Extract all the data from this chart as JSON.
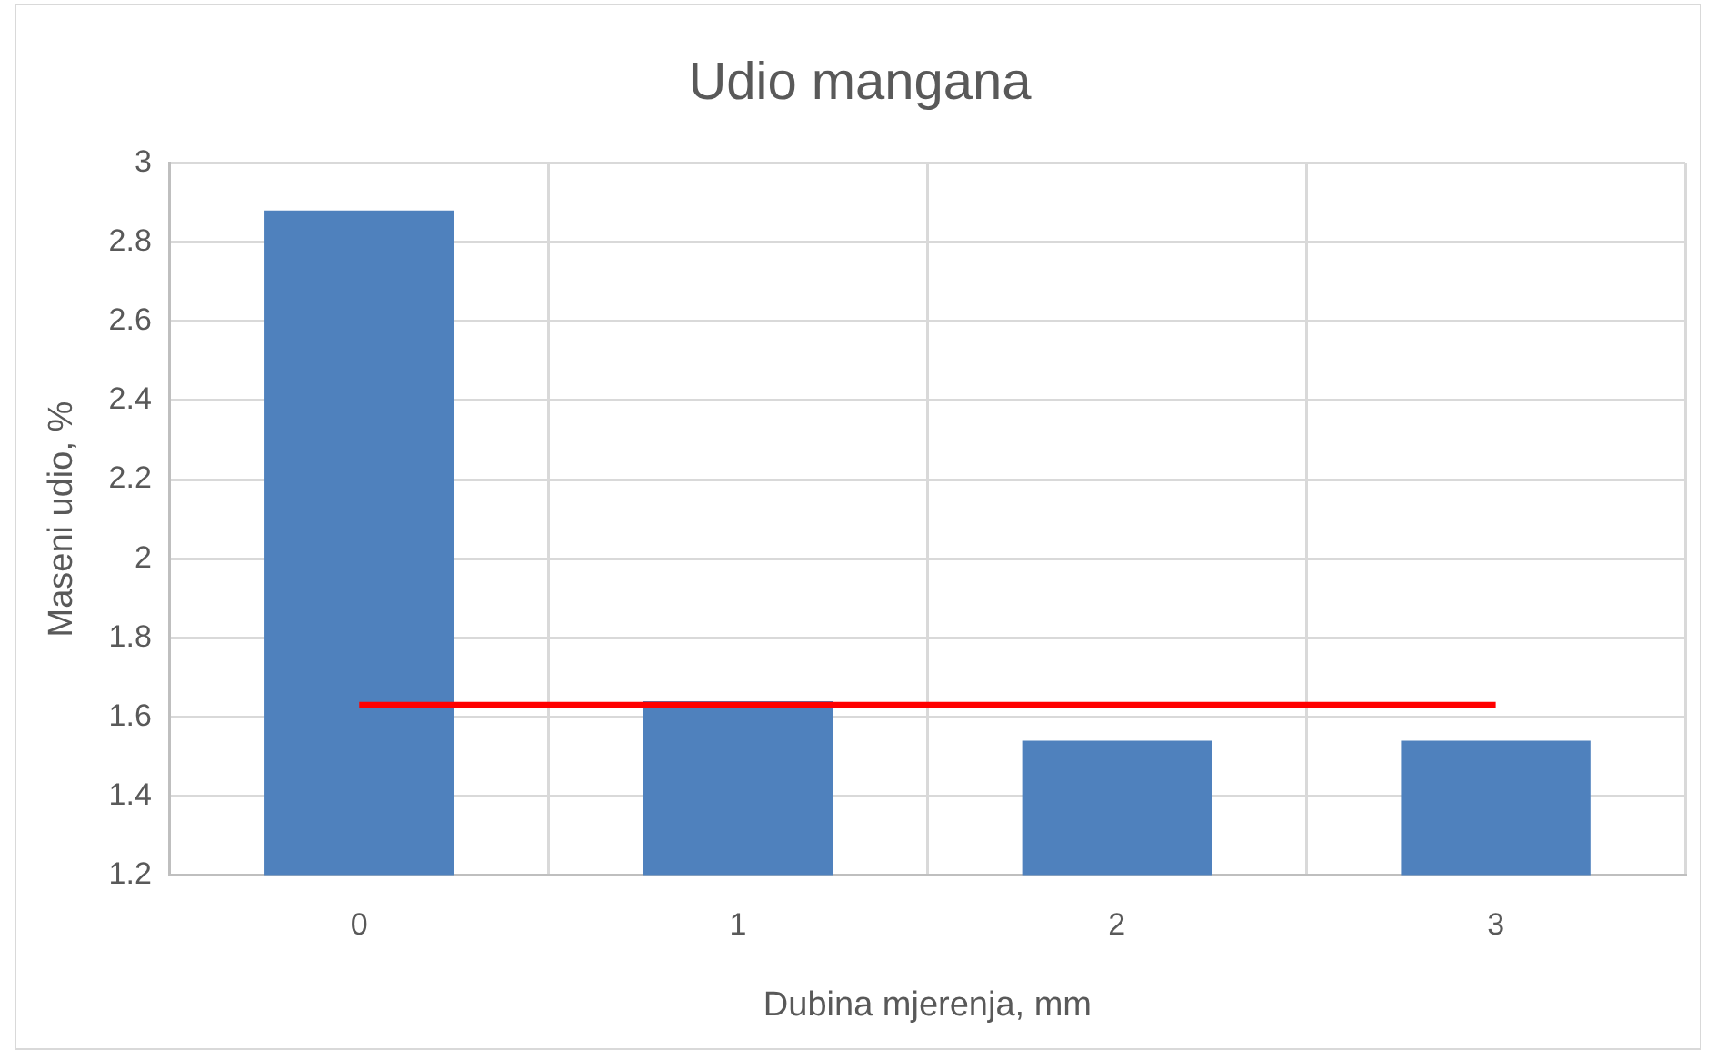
{
  "chart_data": {
    "type": "bar",
    "title": "Udio mangana",
    "xlabel": "Dubina mjerenja, mm",
    "ylabel": "Maseni udio, %",
    "categories": [
      "0",
      "1",
      "2",
      "3"
    ],
    "series": [
      {
        "color": "#4f81bd",
        "values": [
          2.88,
          1.64,
          1.54,
          1.54
        ]
      },
      {
        "type": "line",
        "color": "#ff0000",
        "values": [
          1.63,
          1.63,
          1.63,
          1.63
        ]
      }
    ],
    "ylim": [
      1.2,
      3
    ],
    "yticks": [
      1.2,
      1.4,
      1.6,
      1.8,
      2,
      2.2,
      2.4,
      2.6,
      2.8,
      3
    ],
    "grid": true,
    "marker": "none"
  }
}
